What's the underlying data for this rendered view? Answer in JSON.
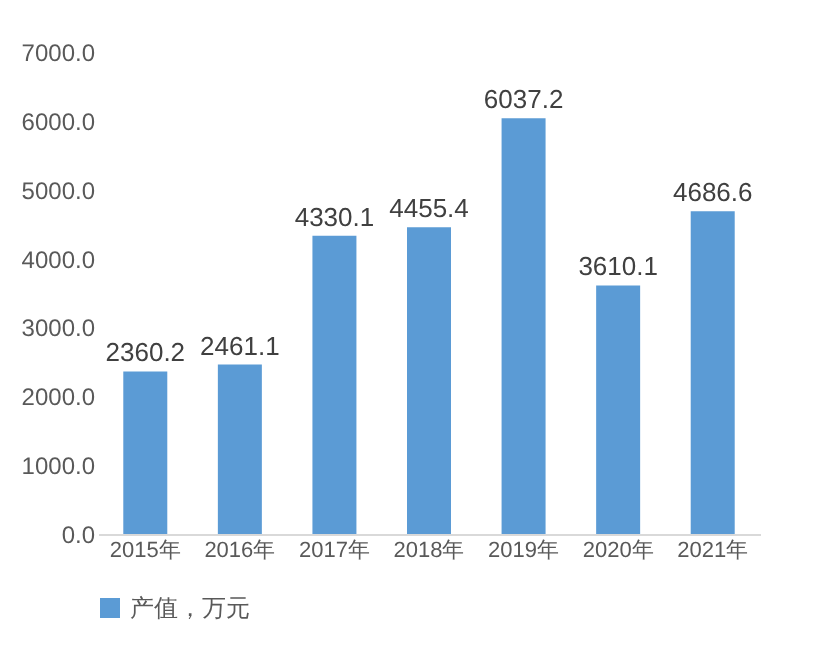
{
  "chart_data": {
    "type": "bar",
    "categories": [
      "2015年",
      "2016年",
      "2017年",
      "2018年",
      "2019年",
      "2020年",
      "2021年"
    ],
    "series": [
      {
        "name": "产值，万元",
        "color": "#5b9bd5",
        "values": [
          2360.2,
          2461.1,
          4330.1,
          4455.4,
          6037.2,
          3610.1,
          4686.6
        ]
      }
    ],
    "ylim": [
      0,
      7000
    ],
    "yticks": [
      {
        "value": 0,
        "label": "0.0"
      },
      {
        "value": 1000,
        "label": "1000.0"
      },
      {
        "value": 2000,
        "label": "2000.0"
      },
      {
        "value": 3000,
        "label": "3000.0"
      },
      {
        "value": 4000,
        "label": "4000.0"
      },
      {
        "value": 5000,
        "label": "5000.0"
      },
      {
        "value": 6000,
        "label": "6000.0"
      },
      {
        "value": 7000,
        "label": "7000.0"
      }
    ],
    "grid": false,
    "legend": "bottom",
    "data_labels": true
  }
}
